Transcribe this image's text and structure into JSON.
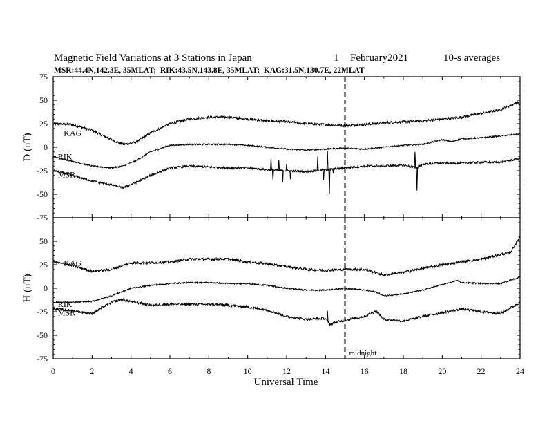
{
  "header": {
    "title": "Magnetic Field Variations at 3 Stations in Japan",
    "day": "1",
    "month_year": "February2021",
    "averaging": "10-s averages",
    "stations_line": "MSR:44.4N,142.3E, 35MLAT;  RIK:43.5N,143.8E, 35MLAT;  KAG:31.5N,130.7E, 22MLAT"
  },
  "chart_data": [
    {
      "type": "line",
      "ylabel": "D (nT)",
      "xlim": [
        0,
        24
      ],
      "ylim": [
        -75,
        75
      ],
      "yticks": [
        75,
        50,
        25,
        0,
        -25,
        -50,
        -75
      ],
      "vline": {
        "x": 15,
        "style": "dashed"
      },
      "series": [
        {
          "name": "KAG",
          "label_at": [
            0.4,
            15
          ],
          "noise": 1.3,
          "points": [
            [
              0,
              25
            ],
            [
              1,
              24
            ],
            [
              2,
              18
            ],
            [
              3,
              8
            ],
            [
              3.6,
              3
            ],
            [
              4.2,
              5
            ],
            [
              5,
              15
            ],
            [
              6,
              25
            ],
            [
              7,
              30
            ],
            [
              8,
              32
            ],
            [
              9,
              32
            ],
            [
              10,
              30
            ],
            [
              11,
              28
            ],
            [
              12,
              27
            ],
            [
              13,
              25
            ],
            [
              14,
              24
            ],
            [
              15,
              23
            ],
            [
              16,
              24
            ],
            [
              17,
              26
            ],
            [
              18,
              27
            ],
            [
              19,
              28
            ],
            [
              20,
              30
            ],
            [
              21,
              32
            ],
            [
              22,
              36
            ],
            [
              23,
              40
            ],
            [
              23.9,
              48
            ],
            [
              24,
              45
            ]
          ],
          "spikes": []
        },
        {
          "name": "RIK",
          "label_at": [
            0.1,
            -10
          ],
          "noise": 0.7,
          "points": [
            [
              0,
              -10
            ],
            [
              1,
              -15
            ],
            [
              2,
              -20
            ],
            [
              3,
              -22
            ],
            [
              3.6,
              -20
            ],
            [
              4.2,
              -15
            ],
            [
              5,
              -5
            ],
            [
              6,
              2
            ],
            [
              7,
              3
            ],
            [
              8,
              3
            ],
            [
              9,
              3
            ],
            [
              10,
              2
            ],
            [
              11,
              0
            ],
            [
              12,
              -2
            ],
            [
              13,
              -3
            ],
            [
              14,
              -2
            ],
            [
              15,
              -1
            ],
            [
              16,
              -2
            ],
            [
              17,
              0
            ],
            [
              18,
              2
            ],
            [
              19,
              3
            ],
            [
              20,
              8
            ],
            [
              20.5,
              6
            ],
            [
              21,
              9
            ],
            [
              22,
              10
            ],
            [
              23,
              12
            ],
            [
              24,
              14
            ]
          ],
          "spikes": []
        },
        {
          "name": "MSR",
          "label_at": [
            0.1,
            -29
          ],
          "noise": 1.1,
          "points": [
            [
              0,
              -25
            ],
            [
              1,
              -30
            ],
            [
              2,
              -36
            ],
            [
              3,
              -40
            ],
            [
              3.6,
              -43
            ],
            [
              4.2,
              -38
            ],
            [
              5,
              -30
            ],
            [
              6,
              -22
            ],
            [
              7,
              -20
            ],
            [
              8,
              -21
            ],
            [
              9,
              -22
            ],
            [
              10,
              -22
            ],
            [
              11,
              -24
            ],
            [
              12,
              -25
            ],
            [
              13,
              -26
            ],
            [
              14,
              -24
            ],
            [
              15,
              -22
            ],
            [
              16,
              -20
            ],
            [
              17,
              -20
            ],
            [
              18,
              -19
            ],
            [
              18.7,
              -22
            ],
            [
              19,
              -18
            ],
            [
              20,
              -17
            ],
            [
              21,
              -17
            ],
            [
              22,
              -16
            ],
            [
              23,
              -16
            ],
            [
              24,
              -12
            ]
          ],
          "spikes": [
            [
              11.2,
              -12
            ],
            [
              11.3,
              -35
            ],
            [
              11.6,
              -14
            ],
            [
              11.8,
              -37
            ],
            [
              12.0,
              -18
            ],
            [
              12.2,
              -34
            ],
            [
              13.6,
              -10
            ],
            [
              13.9,
              -35
            ],
            [
              14.1,
              -4
            ],
            [
              14.2,
              -50
            ],
            [
              14.4,
              -28
            ],
            [
              18.6,
              -5
            ],
            [
              18.7,
              -46
            ],
            [
              18.8,
              -18
            ]
          ]
        }
      ]
    },
    {
      "type": "line",
      "ylabel": "H (nT)",
      "xlim": [
        0,
        24
      ],
      "ylim": [
        -75,
        75
      ],
      "yticks": [
        75,
        50,
        25,
        0,
        -25,
        -50,
        -75
      ],
      "vline": {
        "x": 15,
        "style": "dashed",
        "label": "midnight"
      },
      "series": [
        {
          "name": "KAG",
          "label_at": [
            0.4,
            27
          ],
          "noise": 1.3,
          "points": [
            [
              0,
              28
            ],
            [
              1,
              24
            ],
            [
              2,
              18
            ],
            [
              3,
              20
            ],
            [
              4,
              27
            ],
            [
              5,
              27
            ],
            [
              6,
              28
            ],
            [
              7,
              31
            ],
            [
              8,
              31
            ],
            [
              9,
              31
            ],
            [
              10,
              28
            ],
            [
              11,
              26
            ],
            [
              12,
              23
            ],
            [
              13,
              20
            ],
            [
              14,
              19
            ],
            [
              15,
              20
            ],
            [
              16,
              20
            ],
            [
              17,
              14
            ],
            [
              18,
              17
            ],
            [
              19,
              21
            ],
            [
              20,
              25
            ],
            [
              21,
              28
            ],
            [
              22,
              31
            ],
            [
              23,
              36
            ],
            [
              23.5,
              38
            ],
            [
              24,
              55
            ]
          ],
          "spikes": []
        },
        {
          "name": "RIK",
          "label_at": [
            0.1,
            -17
          ],
          "noise": 0.7,
          "points": [
            [
              0,
              -15
            ],
            [
              1,
              -15
            ],
            [
              2,
              -14
            ],
            [
              3,
              -8
            ],
            [
              4,
              0
            ],
            [
              5,
              3
            ],
            [
              6,
              5
            ],
            [
              7,
              6
            ],
            [
              8,
              6
            ],
            [
              9,
              5
            ],
            [
              10,
              5
            ],
            [
              11,
              3
            ],
            [
              12,
              0
            ],
            [
              13,
              -2
            ],
            [
              14,
              -2
            ],
            [
              15,
              0
            ],
            [
              16,
              -2
            ],
            [
              16.6,
              -4
            ],
            [
              17,
              -8
            ],
            [
              18,
              -6
            ],
            [
              19,
              -2
            ],
            [
              20,
              4
            ],
            [
              20.8,
              8
            ],
            [
              21,
              6
            ],
            [
              22,
              5
            ],
            [
              23,
              5
            ],
            [
              24,
              12
            ]
          ],
          "spikes": []
        },
        {
          "name": "MSR",
          "label_at": [
            0.1,
            -26
          ],
          "noise": 1.3,
          "points": [
            [
              0,
              -22
            ],
            [
              1,
              -24
            ],
            [
              2,
              -27
            ],
            [
              3,
              -15
            ],
            [
              3.5,
              -12
            ],
            [
              4,
              -14
            ],
            [
              5,
              -18
            ],
            [
              6,
              -17
            ],
            [
              7,
              -17
            ],
            [
              8,
              -17
            ],
            [
              9,
              -18
            ],
            [
              10,
              -20
            ],
            [
              11,
              -23
            ],
            [
              12,
              -30
            ],
            [
              13,
              -33
            ],
            [
              14,
              -32
            ],
            [
              14.2,
              -38
            ],
            [
              15,
              -34
            ],
            [
              16,
              -30
            ],
            [
              16.6,
              -24
            ],
            [
              17,
              -33
            ],
            [
              18,
              -35
            ],
            [
              19,
              -30
            ],
            [
              20,
              -26
            ],
            [
              21,
              -22
            ],
            [
              22,
              -25
            ],
            [
              23,
              -27
            ],
            [
              24,
              -15
            ]
          ],
          "spikes": [
            [
              14.1,
              -24
            ],
            [
              14.2,
              -40
            ]
          ]
        }
      ]
    }
  ],
  "x_axis": {
    "label": "Universal Time",
    "ticks": [
      0,
      2,
      4,
      6,
      8,
      10,
      12,
      14,
      16,
      18,
      20,
      22,
      24
    ]
  }
}
